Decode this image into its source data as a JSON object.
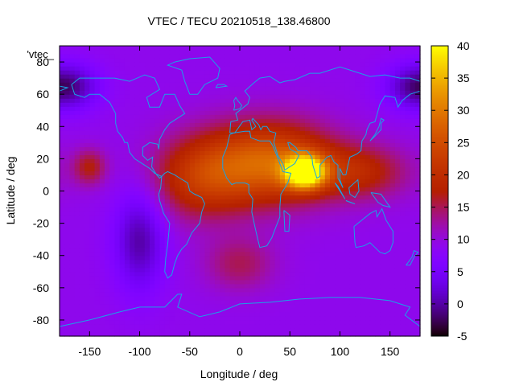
{
  "chart_data": {
    "type": "heatmap",
    "title": "VTEC / TECU 20210518_138.46800",
    "xlabel": "Longitude / deg",
    "ylabel": "Latitude / deg",
    "key_label": "'vtec_",
    "xlim": [
      -180,
      180
    ],
    "ylim": [
      -90,
      90
    ],
    "x_ticks": [
      -150,
      -100,
      -50,
      0,
      50,
      100,
      150
    ],
    "y_ticks": [
      -80,
      -60,
      -40,
      -20,
      0,
      20,
      40,
      60,
      80
    ],
    "colorbar": {
      "range": [
        -5,
        40
      ],
      "ticks": [
        -5,
        0,
        5,
        10,
        15,
        20,
        25,
        30,
        35,
        40
      ]
    },
    "field_features": [
      {
        "name": "equatorial anomaly crest (peak)",
        "lon": 65,
        "lat": 12,
        "value": 39
      },
      {
        "name": "Africa-Arabia high",
        "lon": 30,
        "lat": 18,
        "value": 27
      },
      {
        "name": "India / SE Asia band",
        "lon": 120,
        "lat": 12,
        "value": 18
      },
      {
        "name": "Atlantic / South America band",
        "lon": -40,
        "lat": 8,
        "value": 20
      },
      {
        "name": "Pacific island high",
        "lon": -150,
        "lat": 15,
        "value": 17
      },
      {
        "name": "South Atlantic patch",
        "lon": 0,
        "lat": -45,
        "value": 15
      },
      {
        "name": "East Pacific low",
        "lon": -100,
        "lat": -30,
        "value": 0
      },
      {
        "name": "NW polar low",
        "lon": -165,
        "lat": 65,
        "value": 2
      },
      {
        "name": "NE polar low",
        "lon": 170,
        "lat": 65,
        "value": 2
      },
      {
        "name": "background",
        "value": 9
      }
    ]
  }
}
